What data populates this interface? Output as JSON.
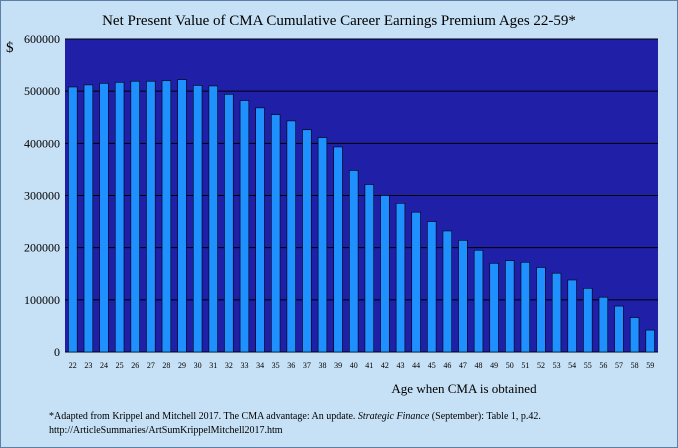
{
  "chart_data": {
    "type": "bar",
    "title": "Net Present Value of CMA Cumulative Career Earnings Premium Ages 22-59*",
    "ylabel": "$",
    "xlabel": "Age when CMA is obtained",
    "ylim": [
      0,
      600000
    ],
    "yticks": [
      "0",
      "100000",
      "200000",
      "300000",
      "400000",
      "500000",
      "600000"
    ],
    "grid": "horizontal",
    "categories": [
      "22",
      "23",
      "24",
      "25",
      "26",
      "27",
      "28",
      "29",
      "30",
      "31",
      "32",
      "33",
      "34",
      "35",
      "36",
      "37",
      "38",
      "39",
      "40",
      "41",
      "42",
      "43",
      "44",
      "45",
      "46",
      "47",
      "48",
      "49",
      "50",
      "51",
      "52",
      "53",
      "54",
      "55",
      "56",
      "57",
      "58",
      "59"
    ],
    "values": [
      508000,
      512000,
      515000,
      517000,
      519000,
      519000,
      520000,
      522000,
      511000,
      510000,
      494000,
      482000,
      468000,
      455000,
      443000,
      426000,
      411000,
      393000,
      348000,
      321000,
      300000,
      285000,
      268000,
      250000,
      232000,
      214000,
      195000,
      170000,
      175000,
      172000,
      162000,
      151000,
      138000,
      122000,
      105000,
      88000,
      66000,
      42000
    ],
    "colors": {
      "bar": "#1e90ff",
      "bar_edge": "#000000",
      "plot_bg": "#1f1fa8",
      "outer_bg": "#c6e0f5"
    }
  },
  "footnote": {
    "line1_pre": "*Adapted from Krippel and Mitchell 2017. The CMA advantage: An update. ",
    "line1_italic": "Strategic Finance",
    "line1_post": " (September): Table 1, p.42.",
    "line2": "http://ArticleSummaries/ArtSumKrippelMitchell2017.htm"
  }
}
